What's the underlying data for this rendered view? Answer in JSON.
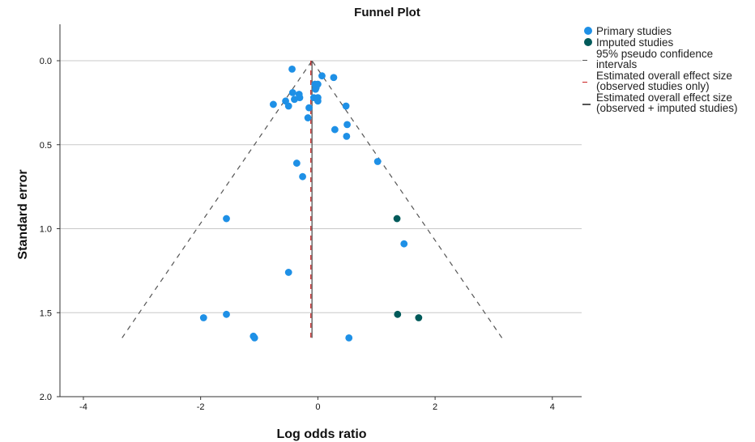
{
  "chart_data": {
    "type": "scatter",
    "title": "Funnel Plot",
    "xlabel": "Log odds ratio",
    "ylabel": "Standard error",
    "xlim": [
      -4.4,
      4.5
    ],
    "ylim": [
      0,
      2.0
    ],
    "y_inverted": true,
    "y_axis_top_extent": -0.22,
    "xticks": [
      -4,
      -2,
      0,
      2,
      4
    ],
    "xtick_labels": [
      "-4",
      "-2",
      "0",
      "2",
      "4"
    ],
    "yticks": [
      0,
      0.5,
      1.0,
      1.5,
      2.0
    ],
    "ytick_labels": [
      "0.0",
      "0.5",
      "1.0",
      "1.5",
      "2.0"
    ],
    "grid": "horizontal",
    "legend_position": "right",
    "series": [
      {
        "name": "Primary studies",
        "color": "#1e90e6",
        "points": [
          {
            "x": -0.44,
            "y": 0.05
          },
          {
            "x": 0.07,
            "y": 0.09
          },
          {
            "x": 0.27,
            "y": 0.1
          },
          {
            "x": -0.05,
            "y": 0.14
          },
          {
            "x": 0.0,
            "y": 0.14
          },
          {
            "x": -0.03,
            "y": 0.16
          },
          {
            "x": -0.04,
            "y": 0.17
          },
          {
            "x": -0.43,
            "y": 0.19
          },
          {
            "x": -0.32,
            "y": 0.2
          },
          {
            "x": -0.31,
            "y": 0.22
          },
          {
            "x": -0.07,
            "y": 0.22
          },
          {
            "x": 0.0,
            "y": 0.22
          },
          {
            "x": -0.4,
            "y": 0.23
          },
          {
            "x": -0.55,
            "y": 0.24
          },
          {
            "x": 0.0,
            "y": 0.24
          },
          {
            "x": -0.76,
            "y": 0.26
          },
          {
            "x": -0.5,
            "y": 0.27
          },
          {
            "x": -0.15,
            "y": 0.28
          },
          {
            "x": 0.48,
            "y": 0.27
          },
          {
            "x": -0.17,
            "y": 0.34
          },
          {
            "x": 0.5,
            "y": 0.38
          },
          {
            "x": 0.29,
            "y": 0.41
          },
          {
            "x": 0.49,
            "y": 0.45
          },
          {
            "x": -0.36,
            "y": 0.61
          },
          {
            "x": 1.02,
            "y": 0.6
          },
          {
            "x": -0.26,
            "y": 0.69
          },
          {
            "x": -1.56,
            "y": 0.94
          },
          {
            "x": 1.47,
            "y": 1.09
          },
          {
            "x": -0.5,
            "y": 1.26
          },
          {
            "x": -1.56,
            "y": 1.51
          },
          {
            "x": -1.95,
            "y": 1.53
          },
          {
            "x": -1.1,
            "y": 1.64
          },
          {
            "x": -1.08,
            "y": 1.65
          },
          {
            "x": 0.53,
            "y": 1.65
          }
        ]
      },
      {
        "name": "Imputed studies",
        "color": "#005a5a",
        "points": [
          {
            "x": 1.35,
            "y": 0.94
          },
          {
            "x": 1.36,
            "y": 1.51
          },
          {
            "x": 1.72,
            "y": 1.53
          }
        ]
      }
    ],
    "lines": [
      {
        "name": "95% pseudo confidence intervals",
        "color": "#555555",
        "style": "dashed",
        "segments": [
          [
            [
              -3.34,
              1.65
            ],
            [
              -0.1,
              0.0
            ]
          ],
          [
            [
              3.14,
              1.65
            ],
            [
              -0.1,
              0.0
            ]
          ]
        ]
      },
      {
        "name": "Estimated overall effect size (observed studies only)",
        "color": "#cc2222",
        "style": "dashed",
        "segments": [
          [
            [
              -0.12,
              0.0
            ],
            [
              -0.12,
              1.65
            ]
          ]
        ]
      },
      {
        "name": "Estimated overall effect size (observed + imputed studies)",
        "color": "#555555",
        "style": "solid",
        "segments": [
          [
            [
              -0.1,
              0.0
            ],
            [
              -0.1,
              1.65
            ]
          ]
        ]
      }
    ],
    "legend": [
      {
        "label": "Primary studies",
        "symbol": "dot",
        "color": "#1e90e6"
      },
      {
        "label": "Imputed studies",
        "symbol": "dot",
        "color": "#005a5a"
      },
      {
        "label": "95% pseudo confidence intervals",
        "symbol": "dash",
        "color": "#555555"
      },
      {
        "label": "Estimated overall effect size (observed studies only)",
        "symbol": "dash",
        "color": "#cc2222"
      },
      {
        "label": "Estimated overall effect size (observed + imputed studies)",
        "symbol": "solid",
        "color": "#555555"
      }
    ]
  }
}
